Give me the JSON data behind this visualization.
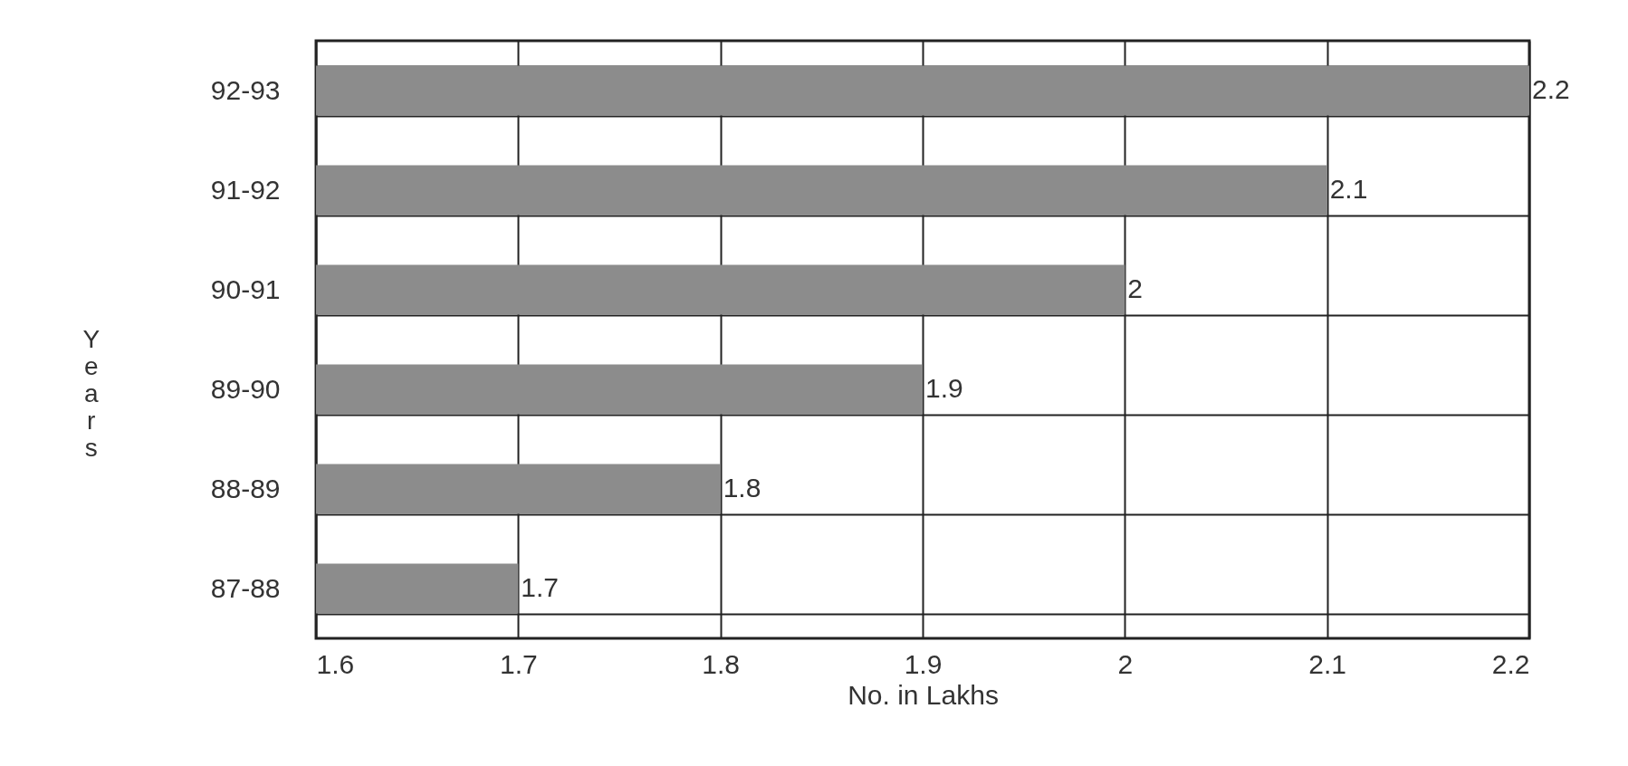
{
  "chart_data": {
    "type": "bar",
    "orientation": "horizontal",
    "xlabel": "No. in Lakhs",
    "ylabel": "Years",
    "categories": [
      "92-93",
      "91-92",
      "90-91",
      "89-90",
      "88-89",
      "87-88"
    ],
    "values": [
      2.2,
      2.1,
      2,
      1.9,
      1.8,
      1.7
    ],
    "color": "#8c8c8c",
    "xlim": [
      1.6,
      2.2
    ],
    "xticks": [
      1.6,
      1.7,
      1.8,
      1.9,
      2,
      2.1,
      2.2
    ],
    "grid": true,
    "data_labels": true
  }
}
